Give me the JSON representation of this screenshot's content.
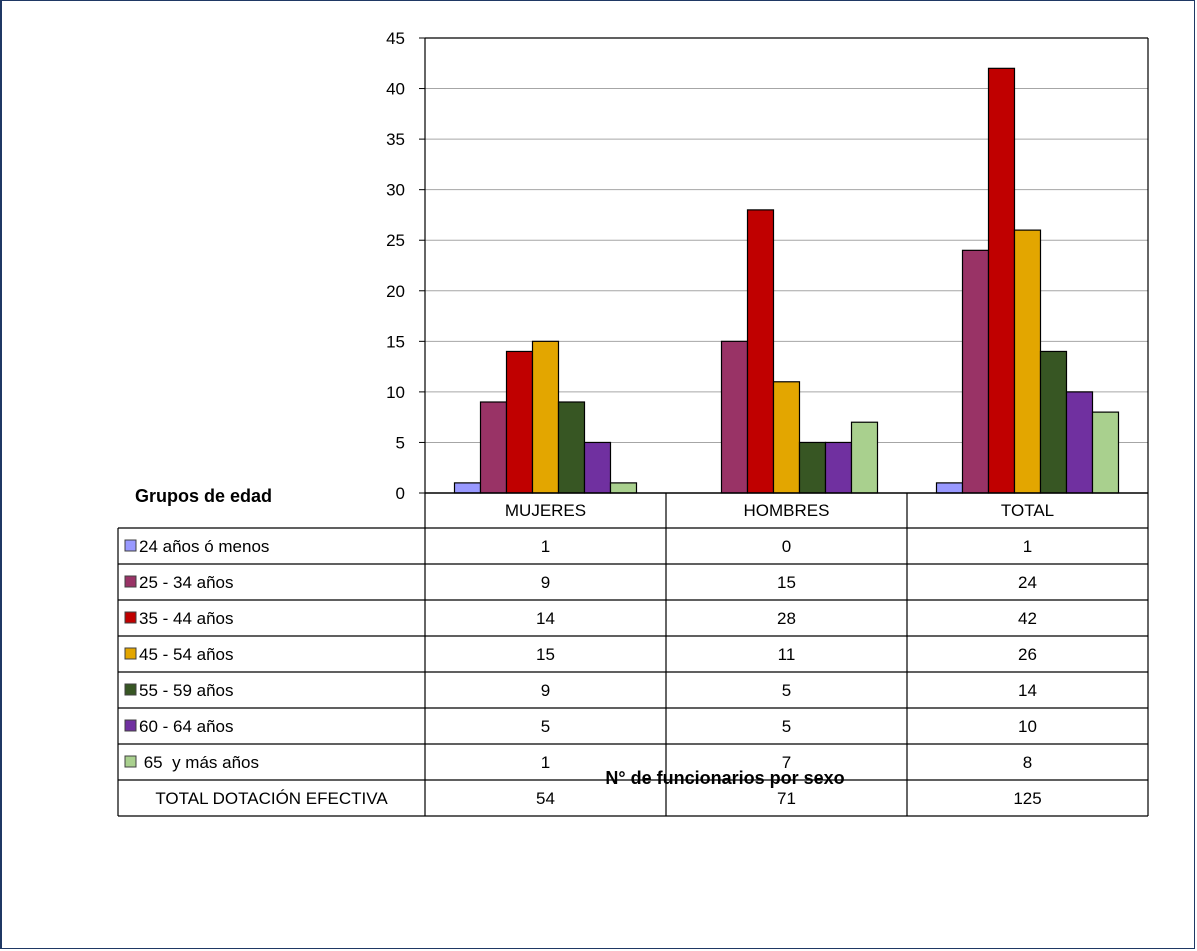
{
  "chart_data": {
    "type": "bar",
    "categories": [
      "MUJERES",
      "HOMBRES",
      "TOTAL"
    ],
    "series": [
      {
        "name": "24 años ó menos",
        "color": "#9999ff",
        "values": [
          1,
          0,
          1
        ]
      },
      {
        "name": "25 - 34 años",
        "color": "#993366",
        "values": [
          9,
          15,
          24
        ]
      },
      {
        "name": "35 - 44 años",
        "color": "#c00000",
        "values": [
          14,
          28,
          42
        ]
      },
      {
        "name": "45 - 54 años",
        "color": "#e3a600",
        "values": [
          15,
          11,
          26
        ]
      },
      {
        "name": "55 - 59 años",
        "color": "#375623",
        "values": [
          9,
          5,
          14
        ]
      },
      {
        "name": "60 - 64 años",
        "color": "#7030a0",
        "values": [
          5,
          5,
          10
        ]
      },
      {
        "name": " 65  y más años",
        "color": "#a9d08e",
        "values": [
          1,
          7,
          8
        ]
      }
    ],
    "totals": {
      "label": "TOTAL DOTACIÓN EFECTIVA",
      "values": [
        54,
        71,
        125
      ]
    },
    "yticks": [
      "0",
      "5",
      "10",
      "15",
      "20",
      "25",
      "30",
      "35",
      "40",
      "45"
    ],
    "ylim": [
      0,
      45
    ],
    "legend_title": "Grupos de edad",
    "xlabel": "N° de funcionarios por sexo",
    "grid": true,
    "legend": "data-table"
  }
}
